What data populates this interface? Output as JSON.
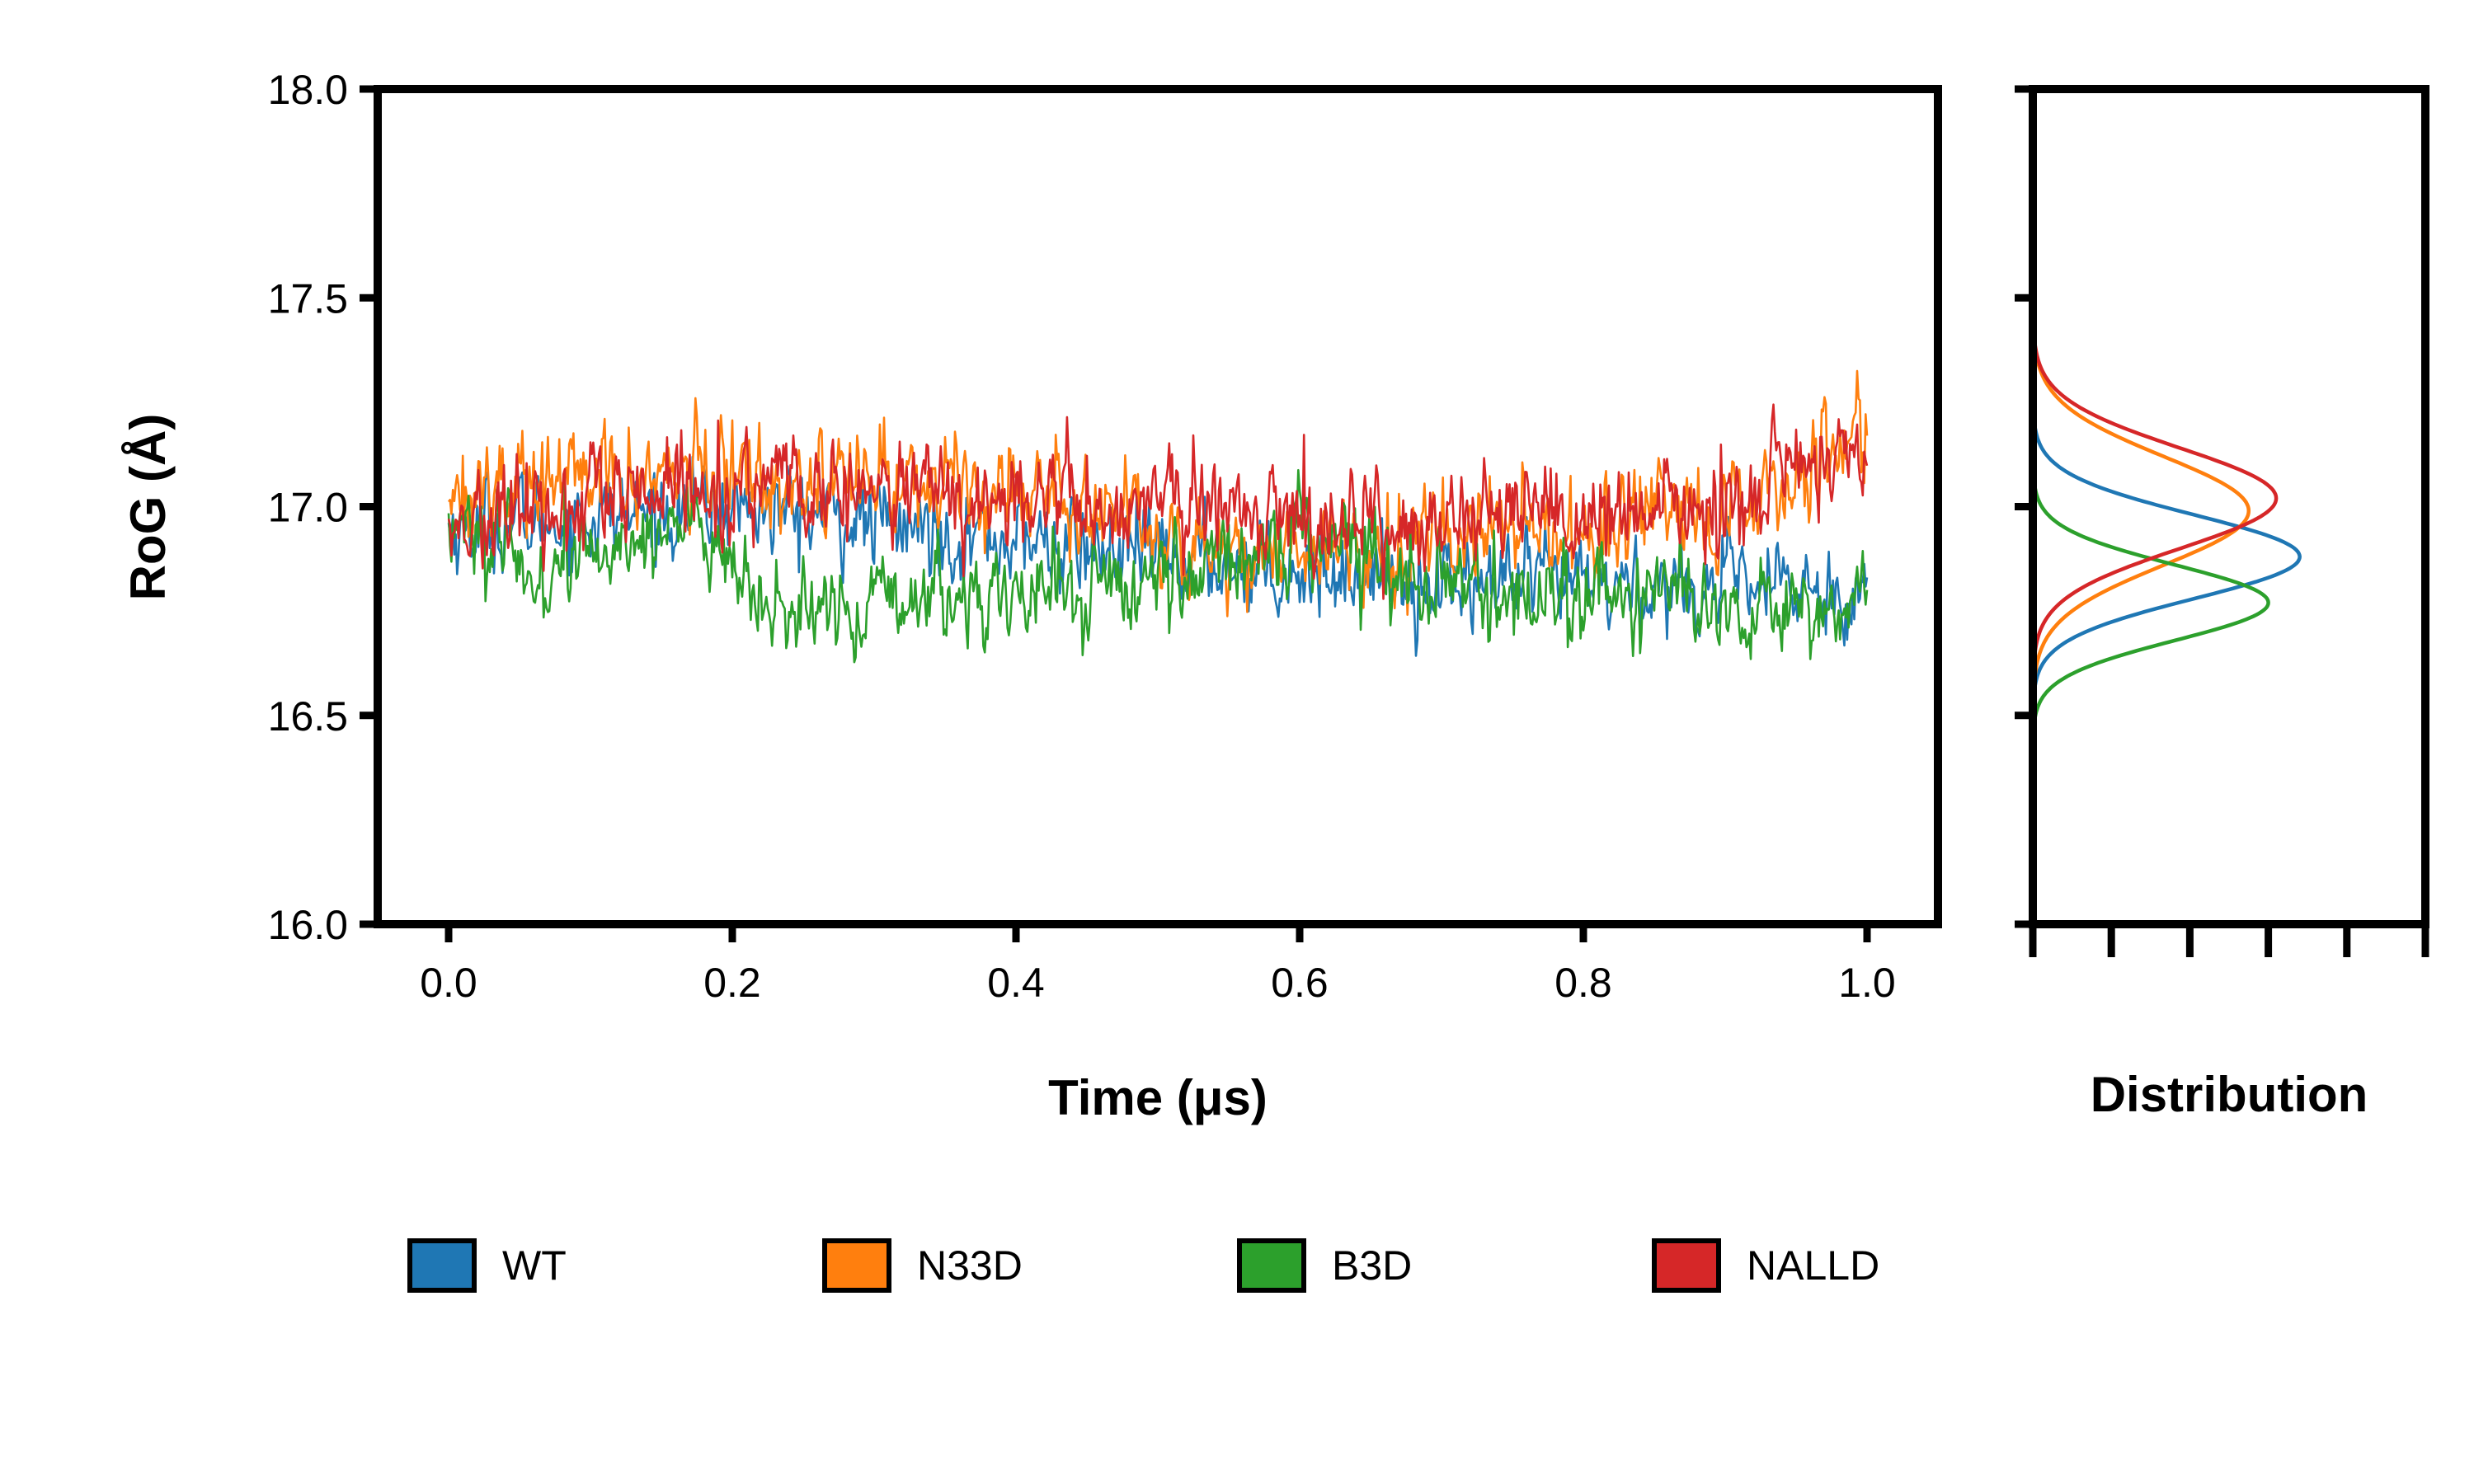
{
  "chart_data": [
    {
      "type": "line",
      "xlabel": "Time (μs)",
      "ylabel": "RoG (Å)",
      "xlim": [
        -0.05,
        1.05
      ],
      "ylim": [
        16.0,
        18.0
      ],
      "x_ticks": [
        "0.0",
        "0.2",
        "0.4",
        "0.6",
        "0.8",
        "1.0"
      ],
      "y_ticks": [
        "16.0",
        "16.5",
        "17.0",
        "17.5",
        "18.0"
      ],
      "x_range": [
        0.0,
        1.0
      ],
      "grid": false,
      "legend_position": "bottom",
      "series": [
        {
          "name": "WT",
          "color": "#1f77b4",
          "segments": [
            {
              "from": 0.0,
              "mean": 16.95
            },
            {
              "from": 0.2,
              "mean": 17.0
            },
            {
              "from": 0.5,
              "mean": 16.88
            },
            {
              "from": 0.7,
              "mean": 16.82
            },
            {
              "from": 1.0,
              "mean": 16.8
            }
          ],
          "noise_sd": 0.09,
          "min": 16.53,
          "max": 17.32
        },
        {
          "name": "N33D",
          "color": "#ff7f0e",
          "segments": [
            {
              "from": 0.0,
              "mean": 17.05
            },
            {
              "from": 0.2,
              "mean": 17.08
            },
            {
              "from": 0.42,
              "mean": 17.05
            },
            {
              "from": 0.55,
              "mean": 16.88
            },
            {
              "from": 0.75,
              "mean": 16.95
            },
            {
              "from": 0.9,
              "mean": 16.95
            },
            {
              "from": 1.0,
              "mean": 17.2
            }
          ],
          "noise_sd": 0.1,
          "min": 16.68,
          "max": 17.53
        },
        {
          "name": "B3D",
          "color": "#2ca02c",
          "segments": [
            {
              "from": 0.0,
              "mean": 16.98
            },
            {
              "from": 0.06,
              "mean": 16.82
            },
            {
              "from": 0.17,
              "mean": 16.98
            },
            {
              "from": 0.22,
              "mean": 16.74
            },
            {
              "from": 0.5,
              "mean": 16.82
            },
            {
              "from": 0.62,
              "mean": 16.95
            },
            {
              "from": 0.7,
              "mean": 16.8
            },
            {
              "from": 1.0,
              "mean": 16.76
            }
          ],
          "noise_sd": 0.09,
          "min": 16.54,
          "max": 17.24
        },
        {
          "name": "NALLD",
          "color": "#d62728",
          "segments": [
            {
              "from": 0.0,
              "mean": 16.95
            },
            {
              "from": 0.2,
              "mean": 17.05
            },
            {
              "from": 0.5,
              "mean": 17.0
            },
            {
              "from": 0.75,
              "mean": 16.95
            },
            {
              "from": 0.9,
              "mean": 17.0
            },
            {
              "from": 1.0,
              "mean": 17.15
            }
          ],
          "noise_sd": 0.1,
          "min": 16.64,
          "max": 17.52
        }
      ]
    },
    {
      "type": "line",
      "xlabel": "Distribution",
      "ylim": [
        16.0,
        18.0
      ],
      "orientation": "horizontal-density",
      "grid": false,
      "series": [
        {
          "name": "WT",
          "color": "#1f77b4",
          "peak_y": 16.88,
          "peak_density": 0.68,
          "sd": 0.1
        },
        {
          "name": "N33D",
          "color": "#ff7f0e",
          "peak_y": 16.99,
          "peak_density": 0.55,
          "sd": 0.13
        },
        {
          "name": "B3D",
          "color": "#2ca02c",
          "peak_y": 16.77,
          "peak_density": 0.6,
          "sd": 0.09
        },
        {
          "name": "NALLD",
          "color": "#d62728",
          "peak_y": 17.02,
          "peak_density": 0.62,
          "sd": 0.12
        }
      ]
    }
  ],
  "legend": {
    "items": [
      {
        "label": "WT",
        "color": "#1f77b4"
      },
      {
        "label": "N33D",
        "color": "#ff7f0e"
      },
      {
        "label": "B3D",
        "color": "#2ca02c"
      },
      {
        "label": "NALLD",
        "color": "#d62728"
      }
    ]
  }
}
